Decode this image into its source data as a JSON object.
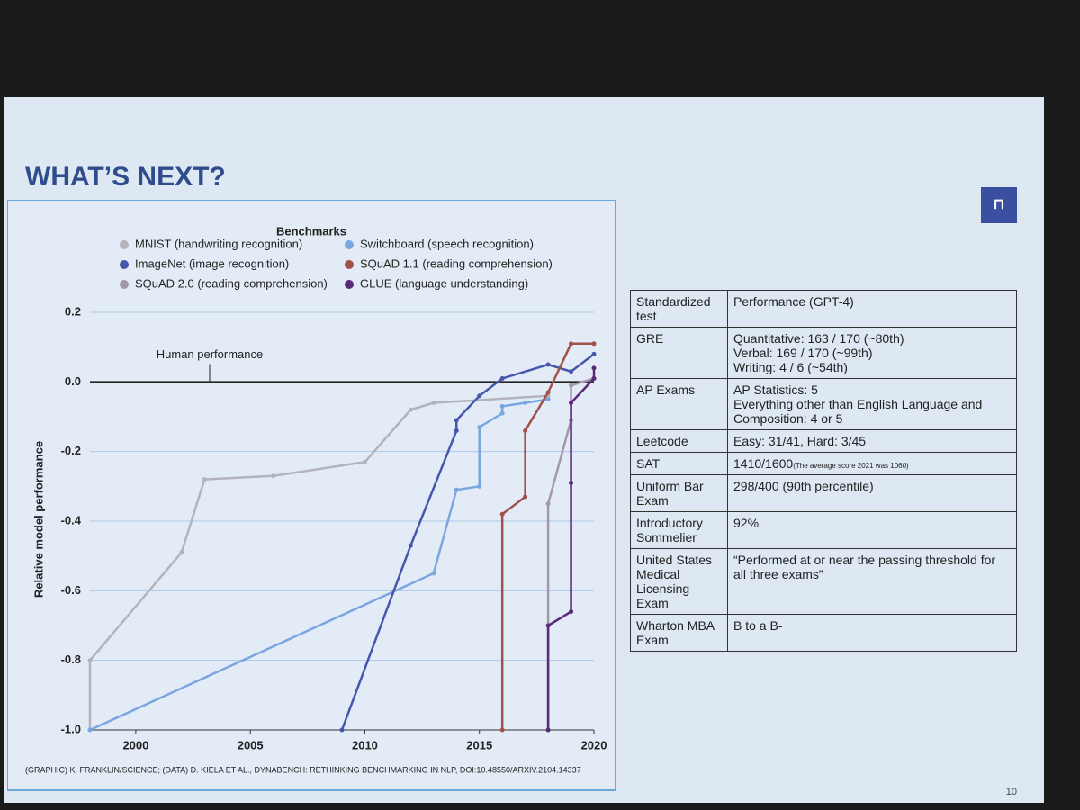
{
  "slide": {
    "title": "WHAT’S NEXT?",
    "page_number": "10"
  },
  "chart_data": {
    "type": "line",
    "legend_title": "Benchmarks",
    "y_label": "Relative model performance",
    "source": "(GRAPHIC) K. FRANKLIN/SCIENCE; (DATA) D. KIELA ET AL., DYNABENCH: RETHINKING BENCHMARKING IN NLP, DOI:10.48550/ARXIV.2104.14337",
    "reference_line": {
      "value": 0,
      "label": "Human performance"
    },
    "xlim": [
      1998,
      2020
    ],
    "xticks": [
      2000,
      2005,
      2010,
      2015,
      2020
    ],
    "ylim": [
      -1.0,
      0.2
    ],
    "yticks": [
      0.2,
      {
        "value": 0,
        "label": "0.0"
      },
      -0.2,
      -0.4,
      -0.6,
      -0.8,
      {
        "value": -1,
        "label": "-1.0"
      }
    ],
    "grid": true,
    "series": [
      {
        "name": "MNIST (handwriting recognition)",
        "color": "#b3b3bb",
        "x": [
          1998,
          1998,
          2002,
          2003,
          2006,
          2010,
          2012,
          2013,
          2018
        ],
        "values": [
          -1.0,
          -0.8,
          -0.49,
          -0.28,
          -0.27,
          -0.23,
          -0.08,
          -0.06,
          -0.04
        ]
      },
      {
        "name": "Switchboard (speech recognition)",
        "color": "#7aa6e0",
        "x": [
          1998,
          2013,
          2014,
          2015,
          2015,
          2016,
          2016,
          2017,
          2018
        ],
        "values": [
          -1.0,
          -0.55,
          -0.31,
          -0.3,
          -0.13,
          -0.09,
          -0.07,
          -0.06,
          -0.05
        ]
      },
      {
        "name": "ImageNet (image recognition)",
        "color": "#4656ad",
        "x": [
          2009,
          2012,
          2014,
          2014,
          2015,
          2016,
          2018,
          2019,
          2020
        ],
        "values": [
          -1.0,
          -0.47,
          -0.14,
          -0.11,
          -0.04,
          0.01,
          0.05,
          0.03,
          0.08
        ]
      },
      {
        "name": "SQuAD 1.1 (reading comprehension)",
        "color": "#a0514a",
        "x": [
          2016,
          2016,
          2017,
          2017,
          2018,
          2019,
          2020
        ],
        "values": [
          -1.0,
          -0.38,
          -0.33,
          -0.14,
          -0.03,
          0.11,
          0.11
        ]
      },
      {
        "name": "SQuAD 2.0 (reading comprehension)",
        "color": "#a398aa",
        "x": [
          2018,
          2018,
          2019,
          2019,
          2020
        ],
        "values": [
          -1.0,
          -0.35,
          -0.11,
          -0.01,
          0.01
        ]
      },
      {
        "name": "GLUE (language understanding)",
        "color": "#5a2a7a",
        "x": [
          2018,
          2018,
          2019,
          2019,
          2019,
          2020,
          2020
        ],
        "values": [
          -1.0,
          -0.7,
          -0.66,
          -0.29,
          -0.06,
          0.01,
          0.04
        ]
      }
    ]
  },
  "table": {
    "headers": [
      "Standardized test",
      "Performance (GPT-4)"
    ],
    "rows": [
      {
        "test": "GRE",
        "performance": [
          "Quantitative: 163 / 170 (~80th)",
          "Verbal: 169 / 170 (~99th)",
          "Writing: 4 / 6 (~54th)"
        ]
      },
      {
        "test": "AP Exams",
        "performance": [
          "AP Statistics: 5",
          "Everything other than English Language and Composition: 4 or 5"
        ]
      },
      {
        "test": "Leetcode",
        "performance": [
          "Easy: 31/41, Hard: 3/45"
        ]
      },
      {
        "test": "SAT",
        "performance": [
          "1410/1600"
        ],
        "note": "(The average score 2021 was 1060)"
      },
      {
        "test": "Uniform Bar Exam",
        "performance": [
          "298/400 (90th percentile)"
        ]
      },
      {
        "test": "Introductory Sommelier",
        "performance": [
          "92%"
        ]
      },
      {
        "test": "United States Medical Licensing Exam",
        "performance": [
          "“Performed at or near the passing threshold for all three exams”"
        ]
      },
      {
        "test": "Wharton MBA Exam",
        "performance": [
          "B to a B-"
        ]
      }
    ]
  }
}
